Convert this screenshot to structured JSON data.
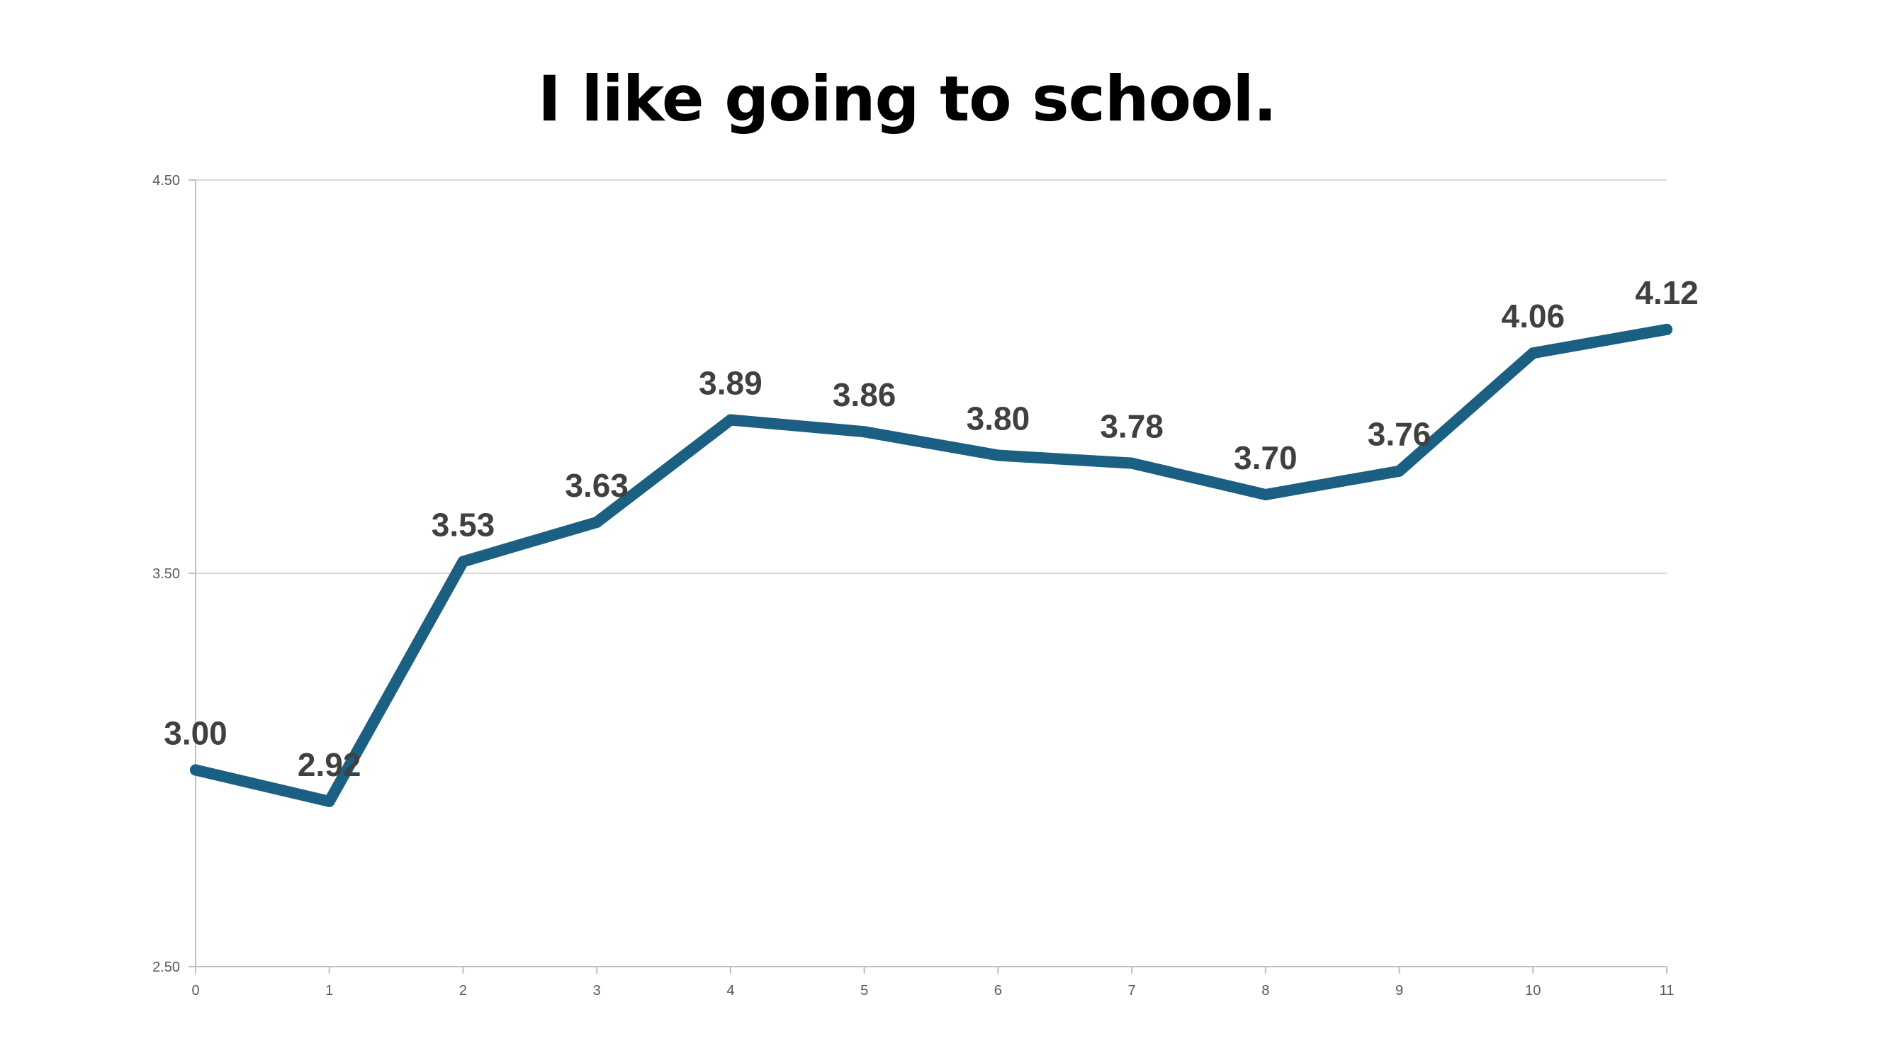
{
  "chart_data": {
    "type": "line",
    "title": "I like going to school.",
    "xlabel": "",
    "ylabel": "",
    "x": [
      0,
      1,
      2,
      3,
      4,
      5,
      6,
      7,
      8,
      9,
      10,
      11
    ],
    "series": [
      {
        "values": [
          3.0,
          2.92,
          3.53,
          3.63,
          3.89,
          3.86,
          3.8,
          3.78,
          3.7,
          3.76,
          4.06,
          4.12
        ]
      }
    ],
    "data_labels": [
      "3.00",
      "2.92",
      "3.53",
      "3.63",
      "3.89",
      "3.86",
      "3.80",
      "3.78",
      "3.70",
      "3.76",
      "4.06",
      "4.12"
    ],
    "y_ticks": [
      "2.50",
      "3.50",
      "4.50"
    ],
    "ylim": [
      2.5,
      4.5
    ],
    "xlim": [
      0,
      11
    ],
    "grid": true,
    "legend": "none",
    "line_color": "#1B5F82"
  }
}
